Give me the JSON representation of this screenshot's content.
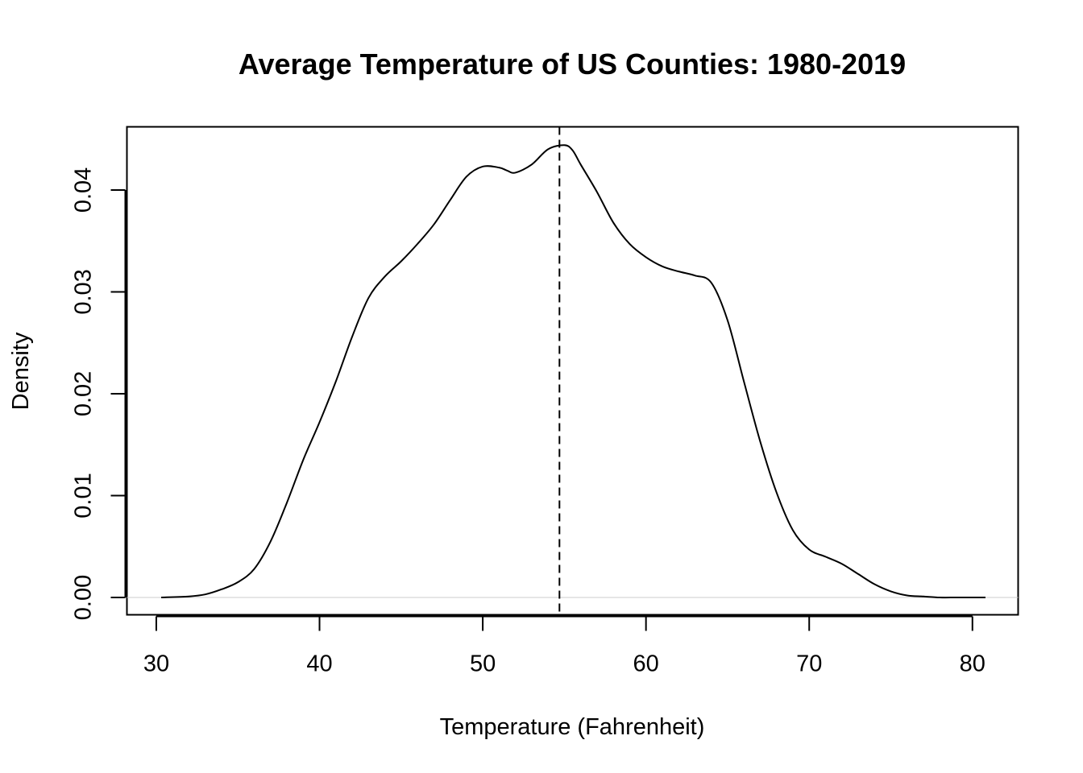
{
  "chart_data": {
    "type": "line",
    "title": "Average Temperature of US Counties: 1980-2019",
    "xlabel": "Temperature (Fahrenheit)",
    "ylabel": "Density",
    "xlim": [
      28.2,
      82.8
    ],
    "ylim": [
      -0.0017,
      0.0462
    ],
    "x_ticks": [
      30,
      40,
      50,
      60,
      70,
      80
    ],
    "x_tick_labels": [
      "30",
      "40",
      "50",
      "60",
      "70",
      "80"
    ],
    "y_ticks": [
      0,
      0.01,
      0.02,
      0.03,
      0.04
    ],
    "y_tick_labels": [
      "0.00",
      "0.01",
      "0.02",
      "0.03",
      "0.04"
    ],
    "grid": false,
    "line_color": "#000000",
    "baseline_color": "#cccccc",
    "reference_line": {
      "x": 54.7,
      "style": "dashed",
      "color": "#000000"
    },
    "series": [
      {
        "x": [
          30.3,
          32,
          33,
          34,
          35,
          36,
          37,
          38,
          39,
          40,
          41,
          42,
          43,
          44,
          45,
          46,
          47,
          48,
          49,
          50,
          51,
          51.5,
          52,
          53,
          54,
          55,
          55.5,
          56,
          57,
          58,
          59,
          60,
          61,
          62,
          63,
          64,
          65,
          66,
          67,
          68,
          69,
          70,
          71,
          72,
          73,
          74,
          75,
          76,
          77,
          78,
          79,
          80,
          80.8
        ],
        "y": [
          0.0,
          0.0001,
          0.0003,
          0.0008,
          0.0015,
          0.0028,
          0.0055,
          0.0093,
          0.0135,
          0.0172,
          0.0212,
          0.0256,
          0.0294,
          0.0315,
          0.033,
          0.0347,
          0.0366,
          0.039,
          0.0413,
          0.0423,
          0.0422,
          0.0419,
          0.0417,
          0.0425,
          0.044,
          0.0444,
          0.0439,
          0.0425,
          0.0398,
          0.0368,
          0.0347,
          0.0334,
          0.0325,
          0.032,
          0.0316,
          0.0309,
          0.0272,
          0.0212,
          0.0153,
          0.0103,
          0.0066,
          0.0047,
          0.004,
          0.0033,
          0.0023,
          0.0013,
          0.0006,
          0.0002,
          0.0001,
          0.0,
          0.0,
          0.0,
          0.0
        ]
      }
    ]
  }
}
